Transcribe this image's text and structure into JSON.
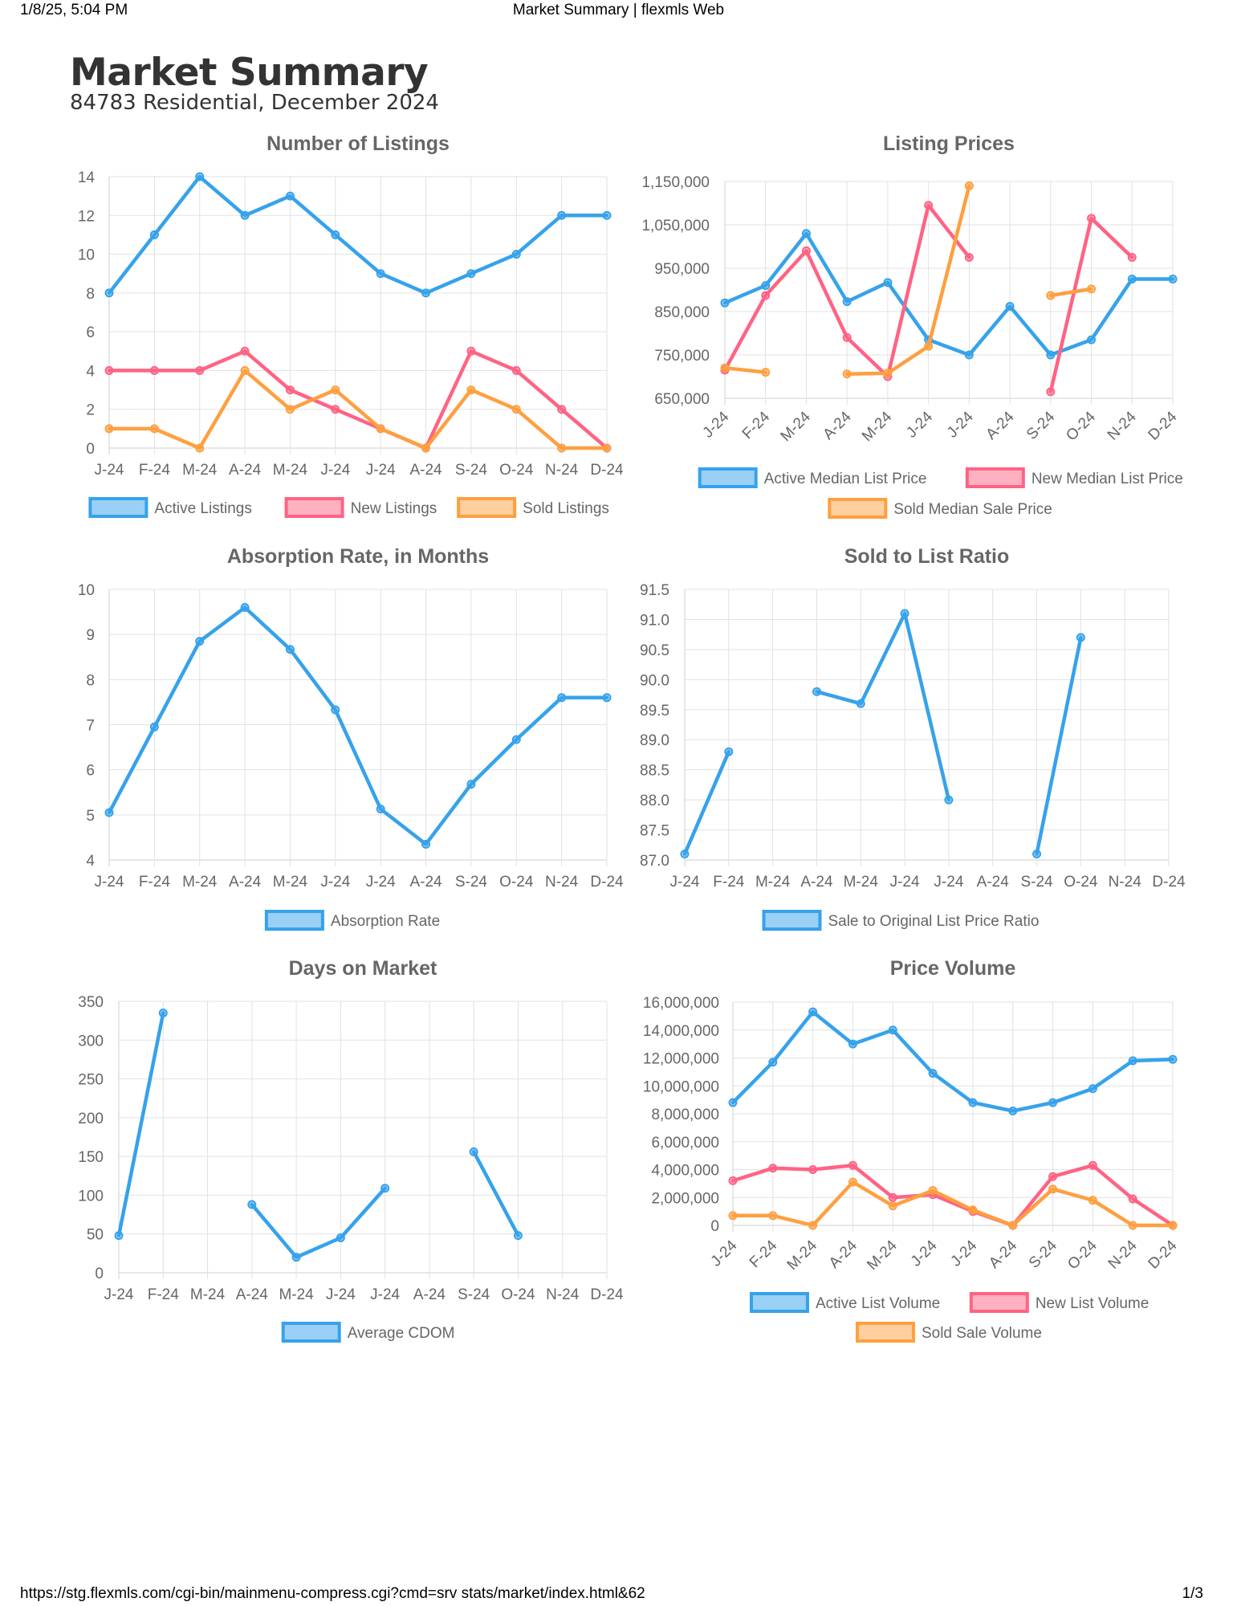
{
  "print_header": {
    "datetime": "1/8/25, 5:04 PM",
    "page_title": "Market Summary | flexmls Web"
  },
  "print_footer": {
    "url": "https://stg.flexmls.com/cgi-bin/mainmenu-compress.cgi?cmd=srv stats/market/index.html&62",
    "page_number": "1/3"
  },
  "report": {
    "title": "Market Summary",
    "subtitle": "84783 Residential, December 2024"
  },
  "colors": {
    "blue": "#36a2eb",
    "pink": "#ff6384",
    "orange": "#ff9f40"
  },
  "chart_data": [
    {
      "id": "listings",
      "type": "line",
      "title": "Number of Listings",
      "categories": [
        "J-24",
        "F-24",
        "M-24",
        "A-24",
        "M-24",
        "J-24",
        "J-24",
        "A-24",
        "S-24",
        "O-24",
        "N-24",
        "D-24"
      ],
      "y_ticks": [
        "0",
        "2",
        "4",
        "6",
        "8",
        "10",
        "12",
        "14"
      ],
      "ylim": [
        0,
        14
      ],
      "x_rotated": false,
      "legend_position": "bottom",
      "grid": true,
      "series": [
        {
          "name": "Active Listings",
          "color": "#36a2eb",
          "values": [
            8,
            11,
            14,
            12,
            13,
            11,
            9,
            8,
            9,
            10,
            12,
            12
          ]
        },
        {
          "name": "New Listings",
          "color": "#ff6384",
          "values": [
            4,
            4,
            4,
            5,
            3,
            2,
            1,
            0,
            5,
            4,
            2,
            0
          ]
        },
        {
          "name": "Sold Listings",
          "color": "#ff9f40",
          "values": [
            1,
            1,
            0,
            4,
            2,
            3,
            1,
            0,
            3,
            2,
            0,
            0
          ]
        }
      ]
    },
    {
      "id": "prices",
      "type": "line",
      "title": "Listing Prices",
      "categories": [
        "J-24",
        "F-24",
        "M-24",
        "A-24",
        "M-24",
        "J-24",
        "J-24",
        "A-24",
        "S-24",
        "O-24",
        "N-24",
        "D-24"
      ],
      "y_ticks": [
        "650,000",
        "750,000",
        "850,000",
        "950,000",
        "1,050,000",
        "1,150,000"
      ],
      "ylim": [
        650000,
        1150000
      ],
      "x_rotated": true,
      "legend_position": "bottom",
      "grid": true,
      "series": [
        {
          "name": "Active Median List Price",
          "color": "#36a2eb",
          "values": [
            870000,
            910000,
            1030000,
            873000,
            917000,
            785000,
            750000,
            862000,
            750000,
            785000,
            925000,
            925000
          ]
        },
        {
          "name": "New Median List Price",
          "color": "#ff6384",
          "values": [
            715000,
            887000,
            990000,
            790000,
            700000,
            1095000,
            975000,
            null,
            665000,
            1065000,
            975000,
            null
          ]
        },
        {
          "name": "Sold Median Sale Price",
          "color": "#ff9f40",
          "values": [
            720000,
            710000,
            null,
            706000,
            708000,
            770000,
            1140000,
            null,
            887000,
            902000,
            null,
            null
          ]
        }
      ]
    },
    {
      "id": "absorption",
      "type": "line",
      "title": "Absorption Rate, in Months",
      "categories": [
        "J-24",
        "F-24",
        "M-24",
        "A-24",
        "M-24",
        "J-24",
        "J-24",
        "A-24",
        "S-24",
        "O-24",
        "N-24",
        "D-24"
      ],
      "y_ticks": [
        "4",
        "5",
        "6",
        "7",
        "8",
        "9",
        "10"
      ],
      "ylim": [
        4,
        10
      ],
      "x_rotated": false,
      "legend_position": "bottom",
      "grid": true,
      "series": [
        {
          "name": "Absorption Rate",
          "color": "#36a2eb",
          "values": [
            5.05,
            6.95,
            8.85,
            9.6,
            8.67,
            7.33,
            5.13,
            4.35,
            5.68,
            6.67,
            7.6,
            7.6
          ]
        }
      ]
    },
    {
      "id": "ratio",
      "type": "line",
      "title": "Sold to List Ratio",
      "categories": [
        "J-24",
        "F-24",
        "M-24",
        "A-24",
        "M-24",
        "J-24",
        "J-24",
        "A-24",
        "S-24",
        "O-24",
        "N-24",
        "D-24"
      ],
      "y_ticks": [
        "87.0",
        "87.5",
        "88.0",
        "88.5",
        "89.0",
        "89.5",
        "90.0",
        "90.5",
        "91.0",
        "91.5"
      ],
      "ylim": [
        87.0,
        91.5
      ],
      "x_rotated": false,
      "legend_position": "bottom",
      "grid": true,
      "series": [
        {
          "name": "Sale to Original List Price Ratio",
          "color": "#36a2eb",
          "values": [
            87.1,
            88.8,
            null,
            89.8,
            89.6,
            91.1,
            88.0,
            null,
            87.1,
            90.7,
            null,
            null
          ]
        }
      ]
    },
    {
      "id": "dom",
      "type": "line",
      "title": "Days on Market",
      "categories": [
        "J-24",
        "F-24",
        "M-24",
        "A-24",
        "M-24",
        "J-24",
        "J-24",
        "A-24",
        "S-24",
        "O-24",
        "N-24",
        "D-24"
      ],
      "y_ticks": [
        "0",
        "50",
        "100",
        "150",
        "200",
        "250",
        "300",
        "350"
      ],
      "ylim": [
        0,
        350
      ],
      "x_rotated": false,
      "legend_position": "bottom",
      "grid": true,
      "series": [
        {
          "name": "Average CDOM",
          "color": "#36a2eb",
          "values": [
            48,
            335,
            null,
            88,
            20,
            45,
            109,
            null,
            156,
            48,
            null,
            null
          ]
        }
      ]
    },
    {
      "id": "volume",
      "type": "line",
      "title": "Price Volume",
      "categories": [
        "J-24",
        "F-24",
        "M-24",
        "A-24",
        "M-24",
        "J-24",
        "J-24",
        "A-24",
        "S-24",
        "O-24",
        "N-24",
        "D-24"
      ],
      "y_ticks": [
        "0",
        "2,000,000",
        "4,000,000",
        "6,000,000",
        "8,000,000",
        "10,000,000",
        "12,000,000",
        "14,000,000",
        "16,000,000"
      ],
      "ylim": [
        0,
        16000000
      ],
      "x_rotated": true,
      "legend_position": "bottom",
      "grid": true,
      "series": [
        {
          "name": "Active List Volume",
          "color": "#36a2eb",
          "values": [
            8800000,
            11700000,
            15300000,
            13000000,
            14000000,
            10900000,
            8800000,
            8200000,
            8800000,
            9800000,
            11800000,
            11900000
          ]
        },
        {
          "name": "New List Volume",
          "color": "#ff6384",
          "values": [
            3200000,
            4100000,
            4000000,
            4300000,
            2000000,
            2200000,
            1000000,
            0,
            3500000,
            4300000,
            1900000,
            0
          ]
        },
        {
          "name": "Sold Sale Volume",
          "color": "#ff9f40",
          "values": [
            700000,
            700000,
            0,
            3100000,
            1400000,
            2500000,
            1100000,
            0,
            2600000,
            1800000,
            0,
            0
          ]
        }
      ]
    }
  ]
}
